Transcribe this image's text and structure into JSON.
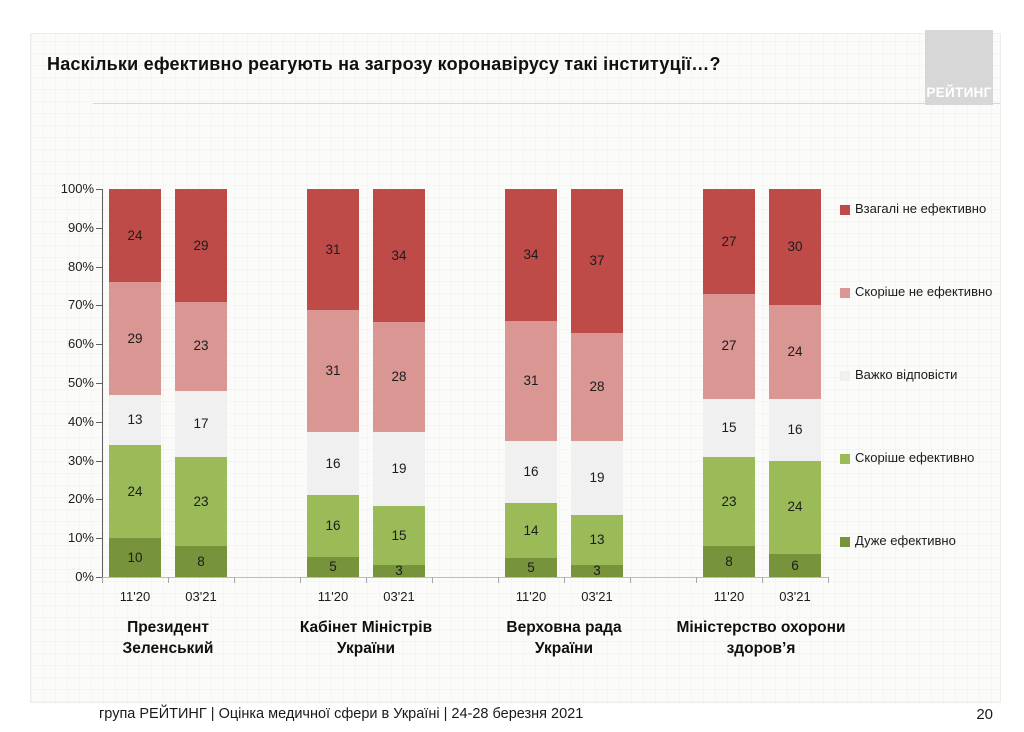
{
  "slide": {
    "title": "Наскільки ефективно реагують на загрозу коронавірусу такі інституції…?",
    "logo_text": "РЕЙТИНГ",
    "footer": "група РЕЙТИНГ  |  Оцінка медичної сфери в Україні  | 24-28 березня 2021",
    "page_number": "20"
  },
  "chart_data": {
    "type": "bar",
    "variant": "100-percent-stacked-column",
    "unit": "%",
    "ylim": [
      0,
      100
    ],
    "grid": false,
    "legend_position": "right",
    "y_ticks_top_to_bottom": [
      "100%",
      "90%",
      "80%",
      "70%",
      "60%",
      "50%",
      "40%",
      "30%",
      "20%",
      "10%",
      "0%"
    ],
    "series_bottom_to_top": [
      "Дуже ефективно",
      "Скоріше ефективно",
      "Важко відповісти",
      "Скоріше не ефективно",
      "Взагалі не ефективно"
    ],
    "legend_top_to_bottom": [
      {
        "label": "Взагалі не ефективно",
        "color": "#be4b48"
      },
      {
        "label": "Скоріше не ефективно",
        "color": "#d99693"
      },
      {
        "label": "Важко відповісти",
        "color": "#f1f0f0"
      },
      {
        "label": "Скоріше ефективно",
        "color": "#9bbb59"
      },
      {
        "label": "Дуже ефективно",
        "color": "#77933c"
      }
    ],
    "groups": [
      {
        "label": "Президент Зеленський",
        "label_lines": [
          "Президент",
          "Зеленський"
        ],
        "bars": [
          {
            "period": "11'20",
            "values_bottom_to_top": [
              10,
              24,
              13,
              29,
              24
            ]
          },
          {
            "period": "03'21",
            "values_bottom_to_top": [
              8,
              23,
              17,
              23,
              29
            ]
          }
        ]
      },
      {
        "label": "Кабінет Міністрів України",
        "label_lines": [
          "Кабінет Міністрів",
          "України"
        ],
        "bars": [
          {
            "period": "11'20",
            "values_bottom_to_top": [
              5,
              16,
              16,
              31,
              31
            ]
          },
          {
            "period": "03'21",
            "values_bottom_to_top": [
              3,
              15,
              19,
              28,
              34
            ]
          }
        ]
      },
      {
        "label": "Верховна рада України",
        "label_lines": [
          "Верховна рада",
          "України"
        ],
        "bars": [
          {
            "period": "11'20",
            "values_bottom_to_top": [
              5,
              14,
              16,
              31,
              34
            ]
          },
          {
            "period": "03'21",
            "values_bottom_to_top": [
              3,
              13,
              19,
              28,
              37
            ]
          }
        ]
      },
      {
        "label": "Міністерство охорони здоров’я",
        "label_lines": [
          "Міністерство охорони",
          "здоров’я"
        ],
        "bars": [
          {
            "period": "11'20",
            "values_bottom_to_top": [
              8,
              23,
              15,
              27,
              27
            ]
          },
          {
            "period": "03'21",
            "values_bottom_to_top": [
              6,
              24,
              16,
              24,
              30
            ]
          }
        ]
      }
    ]
  }
}
